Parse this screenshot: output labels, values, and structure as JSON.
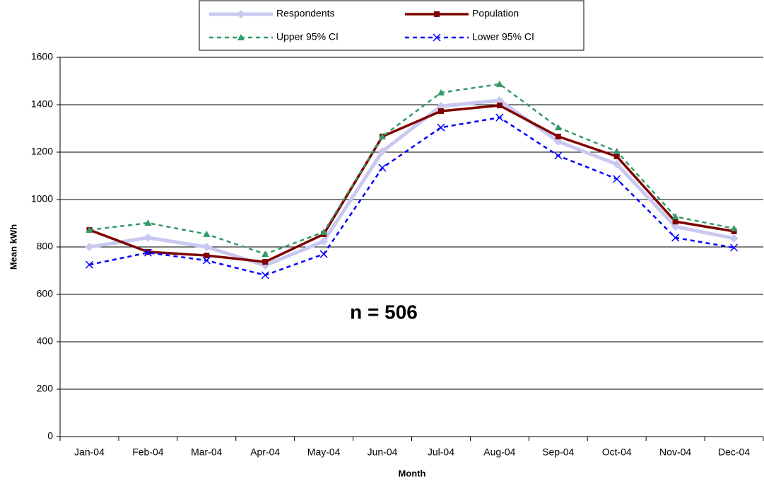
{
  "chart_data": {
    "type": "line",
    "x_label": "Month",
    "y_label": "Mean kWh",
    "annotation": "n = 506",
    "categories": [
      "Jan-04",
      "Feb-04",
      "Mar-04",
      "Apr-04",
      "May-04",
      "Jun-04",
      "Jul-04",
      "Aug-04",
      "Sep-04",
      "Oct-04",
      "Nov-04",
      "Dec-04"
    ],
    "series": [
      {
        "name": "Respondents",
        "color": "#c8c8f0",
        "line_style": "solid",
        "width": 5,
        "marker": "diamond",
        "values": [
          800,
          839,
          800,
          722,
          824,
          1203,
          1394,
          1418,
          1245,
          1149,
          886,
          836
        ]
      },
      {
        "name": "Population",
        "color": "#800000",
        "line_style": "solid",
        "width": 3.5,
        "marker": "square",
        "values": [
          872,
          779,
          764,
          737,
          854,
          1266,
          1373,
          1397,
          1266,
          1182,
          907,
          866
        ]
      },
      {
        "name": "Upper 95% CI",
        "color": "#339966",
        "line_style": "dashed",
        "width": 2.5,
        "marker": "triangle",
        "values": [
          872,
          901,
          854,
          770,
          863,
          1266,
          1451,
          1487,
          1304,
          1203,
          928,
          878
        ]
      },
      {
        "name": "Lower 95% CI",
        "color": "#0000ff",
        "line_style": "dashed",
        "width": 2.5,
        "marker": "x",
        "values": [
          725,
          776,
          743,
          681,
          770,
          1134,
          1304,
          1346,
          1185,
          1087,
          839,
          797
        ]
      }
    ],
    "ylim": [
      0,
      1600
    ],
    "yticks": [
      0,
      200,
      400,
      600,
      800,
      1000,
      1200,
      1400,
      1600
    ],
    "grid": true,
    "legend": "top"
  }
}
